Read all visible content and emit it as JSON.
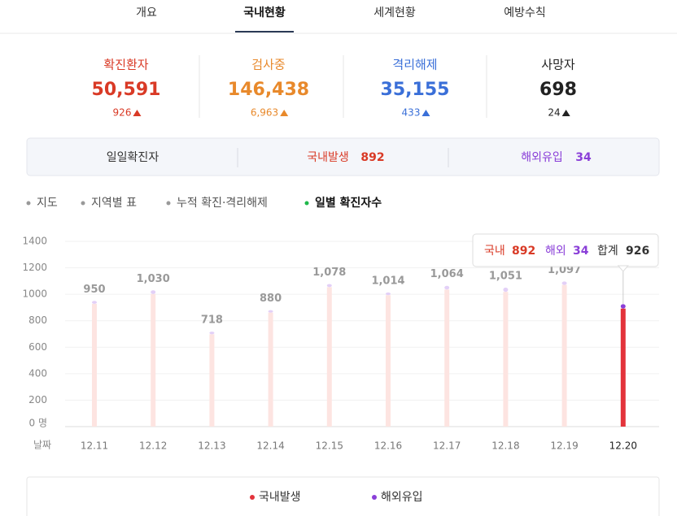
{
  "tabs": [
    "개요",
    "국내현황",
    "세계현황",
    "예방수칙"
  ],
  "active_tab": "국내현황",
  "stats": [
    {
      "label": "확진환자",
      "value": "50,591",
      "delta": "926",
      "color": "#d93a26"
    },
    {
      "label": "검사중",
      "value": "146,438",
      "delta": "6,963",
      "color": "#e8892b"
    },
    {
      "label": "격리해제",
      "value": "35,155",
      "delta": "433",
      "color": "#3a6fd8"
    },
    {
      "label": "사망자",
      "value": "698",
      "delta": "24",
      "color": "#222222"
    }
  ],
  "daily": {
    "label": "일일확진자",
    "domestic_label": "국내발생",
    "domestic_value": "892",
    "overseas_label": "해외유입",
    "overseas_value": "34"
  },
  "subtabs": [
    "지도",
    "지역별 표",
    "누적 확진·격리해제",
    "일별 확진자수"
  ],
  "active_subtab": "일별 확진자수",
  "chart_data": {
    "type": "stacked_bar",
    "xlabel": "날짜",
    "categories": [
      "12.11",
      "12.12",
      "12.13",
      "12.14",
      "12.15",
      "12.16",
      "12.17",
      "12.18",
      "12.19",
      "12.20"
    ],
    "series": [
      {
        "name": "국내발생",
        "color": "#e3333b",
        "faded_color": "#fde4e1",
        "values": [
          928,
          1002,
          698,
          862,
          1054,
          993,
          1036,
          1018,
          1071,
          892
        ]
      },
      {
        "name": "해외유입",
        "color": "#8a3fd8",
        "faded_color": "#e3d0f7",
        "values": [
          22,
          28,
          20,
          18,
          24,
          21,
          28,
          33,
          26,
          34
        ]
      }
    ],
    "totals": [
      950,
      1030,
      718,
      880,
      1078,
      1014,
      1064,
      1051,
      1097,
      926
    ],
    "value_labels": [
      "950",
      "1,030",
      "718",
      "880",
      "1,078",
      "1,014",
      "1,064",
      "1,051",
      "1,097",
      "926"
    ],
    "selected_category": "12.20",
    "tooltip": {
      "domestic": "국내",
      "overseas": "해외",
      "total": "합계"
    },
    "ylim": [
      0,
      1400
    ],
    "yticks": [
      {
        "value": 0,
        "label": "0 명"
      },
      200,
      400,
      600,
      800,
      1000,
      1200,
      1400
    ],
    "grid": true
  }
}
